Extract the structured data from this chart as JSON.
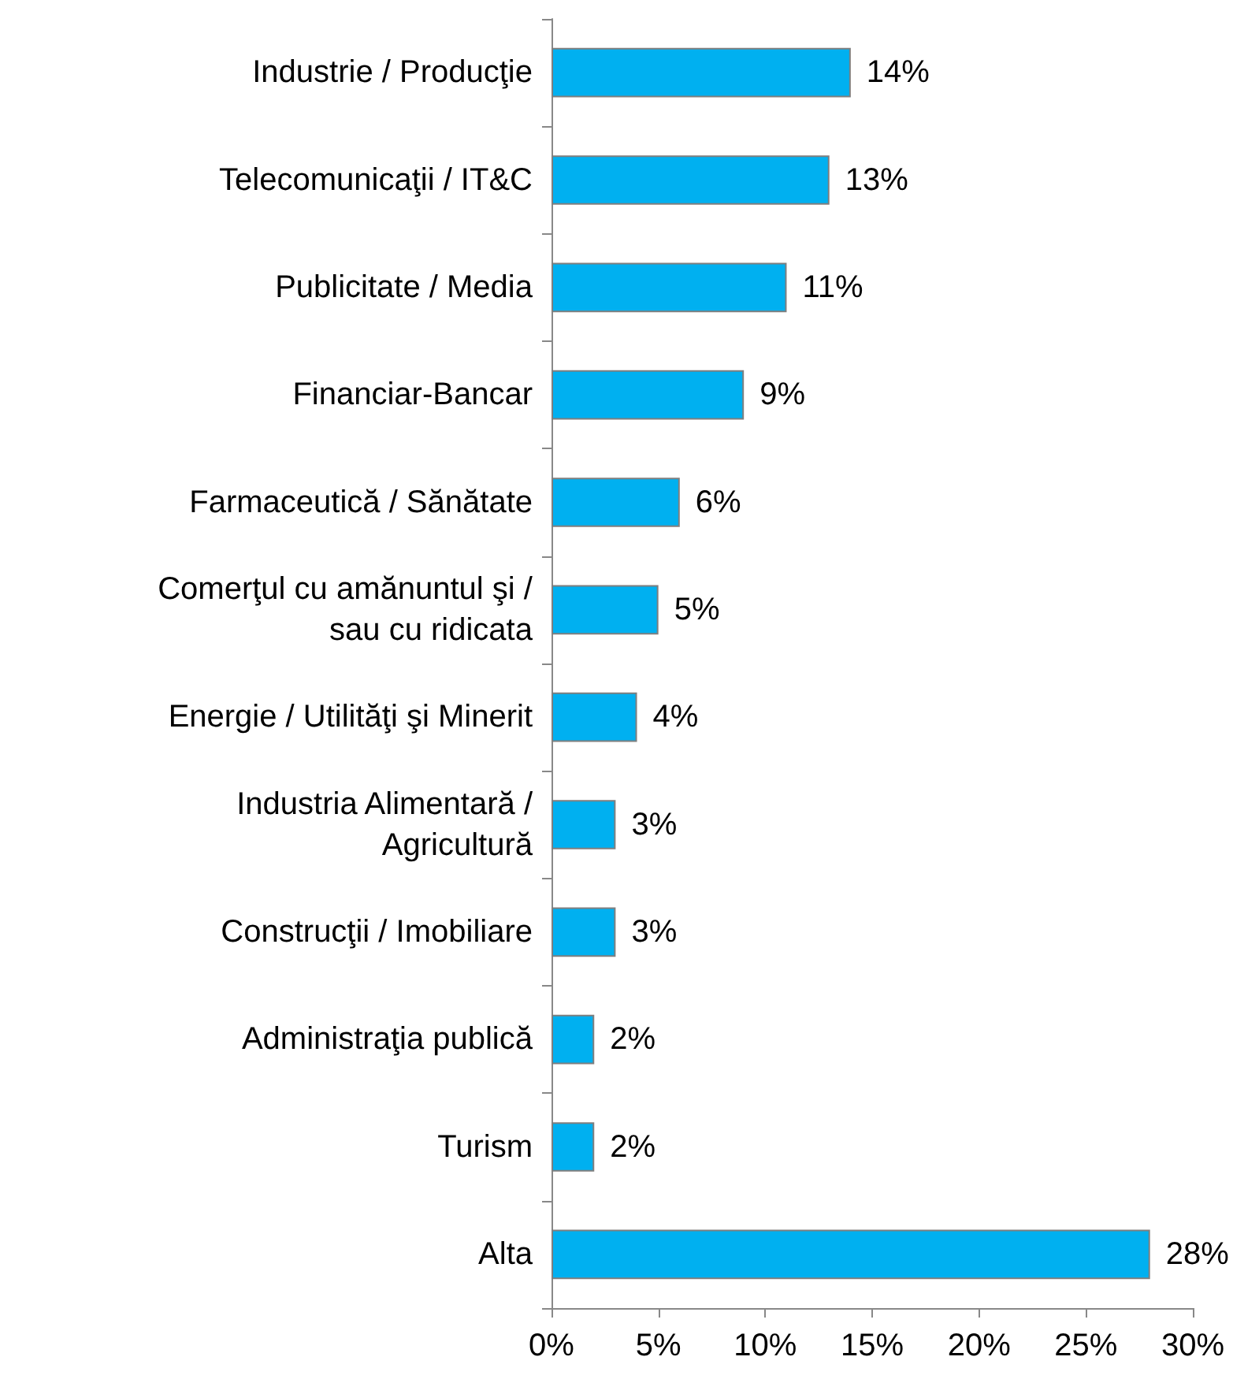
{
  "chart_data": {
    "type": "bar",
    "orientation": "horizontal",
    "categories": [
      "Industrie / Producţie",
      "Telecomunicaţii / IT&C",
      "Publicitate / Media",
      "Financiar-Bancar",
      "Farmaceutică / Sănătate",
      "Comerţul cu amănuntul şi /\nsau cu ridicata",
      "Energie / Utilităţi şi Minerit",
      "Industria Alimentară /\nAgricultură",
      "Construcţii / Imobiliare",
      "Administraţia publică",
      "Turism",
      "Alta"
    ],
    "values": [
      14,
      13,
      11,
      9,
      6,
      5,
      4,
      3,
      3,
      2,
      2,
      28
    ],
    "value_labels": [
      "14%",
      "13%",
      "11%",
      "9%",
      "6%",
      "5%",
      "4%",
      "3%",
      "3%",
      "2%",
      "2%",
      "28%"
    ],
    "color": "#00b0f0",
    "xlim": [
      0,
      30
    ],
    "xticks": [
      {
        "value": 0,
        "label": "0%"
      },
      {
        "value": 5,
        "label": "5%"
      },
      {
        "value": 10,
        "label": "10%"
      },
      {
        "value": 15,
        "label": "15%"
      },
      {
        "value": 20,
        "label": "20%"
      },
      {
        "value": 25,
        "label": "25%"
      },
      {
        "value": 30,
        "label": "30%"
      }
    ],
    "grid": false
  }
}
